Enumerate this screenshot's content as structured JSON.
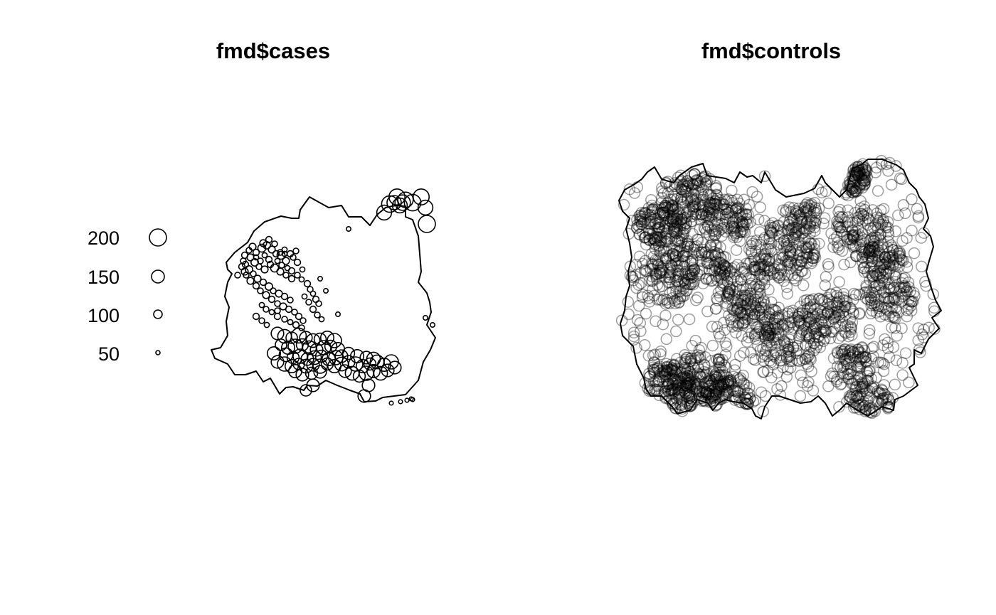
{
  "chart_data": [
    {
      "type": "scatter",
      "title": "fmd$cases",
      "legend": {
        "position": "left",
        "values": [
          200,
          150,
          100,
          50
        ]
      },
      "window": [
        [
          -10,
          110
        ],
        [
          -8,
          122
        ],
        [
          5,
          140
        ],
        [
          32,
          125
        ],
        [
          50,
          128
        ],
        [
          60,
          112
        ],
        [
          78,
          112
        ],
        [
          90,
          100
        ],
        [
          100,
          115
        ],
        [
          112,
          125
        ],
        [
          126,
          128
        ],
        [
          140,
          127
        ],
        [
          140,
          112
        ],
        [
          150,
          108
        ],
        [
          158,
          85
        ],
        [
          160,
          60
        ],
        [
          162,
          35
        ],
        [
          158,
          20
        ],
        [
          170,
          5
        ],
        [
          174,
          -8
        ],
        [
          176,
          -22
        ],
        [
          170,
          -40
        ],
        [
          182,
          -58
        ],
        [
          175,
          -75
        ],
        [
          165,
          -92
        ],
        [
          158,
          -118
        ],
        [
          140,
          -138
        ],
        [
          124,
          -140
        ],
        [
          108,
          -142
        ],
        [
          98,
          -147
        ],
        [
          82,
          -148
        ],
        [
          76,
          -137
        ],
        [
          62,
          -132
        ],
        [
          44,
          -125
        ],
        [
          28,
          -118
        ],
        [
          16,
          -126
        ],
        [
          2,
          -125
        ],
        [
          -3,
          -132
        ],
        [
          -18,
          -127
        ],
        [
          -28,
          -128
        ],
        [
          -37,
          -137
        ],
        [
          -50,
          -115
        ],
        [
          -60,
          -120
        ],
        [
          -70,
          -105
        ],
        [
          -85,
          -110
        ],
        [
          -100,
          -110
        ],
        [
          -110,
          -95
        ],
        [
          -128,
          -87
        ],
        [
          -133,
          -75
        ],
        [
          -120,
          -72
        ],
        [
          -110,
          -55
        ],
        [
          -112,
          -35
        ],
        [
          -108,
          -15
        ],
        [
          -114,
          0
        ],
        [
          -110,
          20
        ],
        [
          -104,
          32
        ],
        [
          -110,
          38
        ],
        [
          -112,
          48
        ],
        [
          -100,
          62
        ],
        [
          -82,
          76
        ],
        [
          -73,
          92
        ],
        [
          -58,
          105
        ],
        [
          -35,
          113
        ],
        [
          -20,
          110
        ]
      ],
      "points": [
        [
          -80,
          65,
          50
        ],
        [
          -75,
          70,
          60
        ],
        [
          -70,
          62,
          55
        ],
        [
          -62,
          68,
          70
        ],
        [
          -55,
          72,
          65
        ],
        [
          -48,
          66,
          60
        ],
        [
          -42,
          60,
          55
        ],
        [
          -35,
          58,
          70
        ],
        [
          -28,
          50,
          60
        ],
        [
          -18,
          55,
          50
        ],
        [
          -12,
          48,
          55
        ],
        [
          -78,
          55,
          60
        ],
        [
          -72,
          48,
          65
        ],
        [
          -66,
          42,
          50
        ],
        [
          -58,
          38,
          60
        ],
        [
          -50,
          45,
          55
        ],
        [
          -44,
          40,
          70
        ],
        [
          -36,
          35,
          60
        ],
        [
          -28,
          30,
          50
        ],
        [
          -20,
          25,
          55
        ],
        [
          -85,
          45,
          55
        ],
        [
          -80,
          38,
          65
        ],
        [
          -74,
          32,
          50
        ],
        [
          -68,
          25,
          60
        ],
        [
          -60,
          20,
          55
        ],
        [
          -52,
          14,
          65
        ],
        [
          -46,
          8,
          50
        ],
        [
          -38,
          4,
          60
        ],
        [
          -30,
          0,
          55
        ],
        [
          -22,
          -5,
          50
        ],
        [
          -84,
          30,
          50
        ],
        [
          -78,
          22,
          60
        ],
        [
          -70,
          15,
          55
        ],
        [
          -64,
          8,
          50
        ],
        [
          -56,
          2,
          60
        ],
        [
          -48,
          -4,
          55
        ],
        [
          -40,
          -10,
          50
        ],
        [
          -32,
          -14,
          60
        ],
        [
          -24,
          -18,
          55
        ],
        [
          -16,
          -22,
          50
        ],
        [
          -10,
          -28,
          55
        ],
        [
          -4,
          -34,
          50
        ],
        [
          -62,
          -12,
          45
        ],
        [
          -56,
          -18,
          50
        ],
        [
          -48,
          -22,
          45
        ],
        [
          -40,
          -28,
          55
        ],
        [
          -30,
          -32,
          50
        ],
        [
          -22,
          -36,
          45
        ],
        [
          -14,
          -40,
          55
        ],
        [
          -6,
          -44,
          50
        ],
        [
          -70,
          55,
          45
        ],
        [
          -64,
          50,
          50
        ],
        [
          -58,
          58,
          45
        ],
        [
          -52,
          52,
          55
        ],
        [
          -40,
          50,
          45
        ],
        [
          -34,
          44,
          50
        ],
        [
          -26,
          40,
          45
        ],
        [
          -20,
          36,
          55
        ],
        [
          -12,
          30,
          50
        ],
        [
          -6,
          24,
          45
        ],
        [
          2,
          18,
          55
        ],
        [
          6,
          10,
          50
        ],
        [
          10,
          4,
          45
        ],
        [
          14,
          -4,
          55
        ],
        [
          18,
          -10,
          50
        ],
        [
          -2,
          0,
          45
        ],
        [
          4,
          -8,
          50
        ],
        [
          10,
          -18,
          55
        ],
        [
          16,
          -26,
          50
        ],
        [
          22,
          -32,
          45
        ],
        [
          -86,
          58,
          55
        ],
        [
          -88,
          50,
          50
        ],
        [
          -90,
          42,
          55
        ],
        [
          -86,
          35,
          60
        ],
        [
          -36,
          62,
          50
        ],
        [
          -30,
          66,
          45
        ],
        [
          -22,
          60,
          55
        ],
        [
          -14,
          64,
          50
        ],
        [
          -60,
          75,
          60
        ],
        [
          -52,
          80,
          55
        ],
        [
          -44,
          74,
          50
        ],
        [
          -96,
          30,
          50
        ],
        [
          -70,
          -28,
          55
        ],
        [
          -62,
          -34,
          50
        ],
        [
          -55,
          -40,
          45
        ],
        [
          -40,
          -52,
          110
        ],
        [
          -30,
          -56,
          120
        ],
        [
          -20,
          -58,
          100
        ],
        [
          -10,
          -55,
          130
        ],
        [
          0,
          -58,
          110
        ],
        [
          10,
          -62,
          120
        ],
        [
          20,
          -60,
          105
        ],
        [
          30,
          -58,
          115
        ],
        [
          40,
          -62,
          125
        ],
        [
          -35,
          -68,
          100
        ],
        [
          -25,
          -72,
          115
        ],
        [
          -15,
          -70,
          125
        ],
        [
          -5,
          -68,
          105
        ],
        [
          5,
          -72,
          120
        ],
        [
          15,
          -75,
          110
        ],
        [
          25,
          -72,
          125
        ],
        [
          35,
          -70,
          105
        ],
        [
          45,
          -74,
          115
        ],
        [
          -28,
          -82,
          120
        ],
        [
          -18,
          -86,
          105
        ],
        [
          -8,
          -84,
          125
        ],
        [
          2,
          -88,
          110
        ],
        [
          12,
          -86,
          120
        ],
        [
          22,
          -84,
          105
        ],
        [
          32,
          -88,
          115
        ],
        [
          42,
          -86,
          125
        ],
        [
          50,
          -84,
          110
        ],
        [
          -45,
          -80,
          115
        ],
        [
          -40,
          -92,
          110
        ],
        [
          -30,
          -95,
          125
        ],
        [
          -20,
          -98,
          115
        ],
        [
          -10,
          -95,
          100
        ],
        [
          0,
          -98,
          120
        ],
        [
          10,
          -96,
          110
        ],
        [
          20,
          -98,
          125
        ],
        [
          30,
          -95,
          105
        ],
        [
          40,
          -98,
          115
        ],
        [
          50,
          -95,
          120
        ],
        [
          60,
          -92,
          110
        ],
        [
          70,
          -95,
          125
        ],
        [
          80,
          -98,
          115
        ],
        [
          90,
          -95,
          105
        ],
        [
          100,
          -92,
          120
        ],
        [
          110,
          -96,
          115
        ],
        [
          55,
          -105,
          110
        ],
        [
          65,
          -108,
          120
        ],
        [
          75,
          -112,
          105
        ],
        [
          85,
          -108,
          125
        ],
        [
          95,
          -105,
          115
        ],
        [
          105,
          -108,
          120
        ],
        [
          115,
          -104,
          110
        ],
        [
          -5,
          -110,
          110
        ],
        [
          8,
          -108,
          105
        ],
        [
          -15,
          -105,
          115
        ],
        [
          20,
          -106,
          110
        ],
        [
          60,
          -80,
          105
        ],
        [
          72,
          -84,
          115
        ],
        [
          85,
          -86,
          110
        ],
        [
          95,
          -88,
          120
        ],
        [
          120,
          -92,
          125
        ],
        [
          125,
          -100,
          110
        ],
        [
          88,
          -125,
          110
        ],
        [
          82,
          -140,
          110
        ],
        [
          10,
          -125,
          110
        ],
        [
          0,
          -132,
          100
        ],
        [
          128,
          140,
          140
        ],
        [
          118,
          130,
          145
        ],
        [
          110,
          118,
          130
        ],
        [
          140,
          136,
          135
        ],
        [
          150,
          132,
          145
        ],
        [
          162,
          140,
          140
        ],
        [
          168,
          125,
          130
        ],
        [
          170,
          102,
          150
        ],
        [
          124,
          132,
          125
        ],
        [
          132,
          128,
          130
        ],
        [
          136,
          132,
          135
        ],
        [
          -30,
          60,
          45
        ],
        [
          -5,
          38,
          45
        ],
        [
          20,
          25,
          40
        ],
        [
          28,
          8,
          40
        ],
        [
          45,
          -25,
          40
        ],
        [
          60,
          95,
          40
        ],
        [
          -40,
          -20,
          50
        ],
        [
          178,
          -40,
          40
        ],
        [
          168,
          -30,
          40
        ],
        [
          120,
          -150,
          35
        ],
        [
          133,
          -148,
          35
        ],
        [
          142,
          -146,
          35
        ],
        [
          150,
          -145,
          35
        ],
        [
          148,
          -144,
          35
        ]
      ]
    },
    {
      "type": "scatter",
      "title": "fmd$controls",
      "window": [
        [
          -170,
          175
        ],
        [
          -160,
          182
        ],
        [
          -150,
          165
        ],
        [
          -133,
          160
        ],
        [
          -125,
          170
        ],
        [
          -108,
          182
        ],
        [
          -92,
          187
        ],
        [
          -86,
          170
        ],
        [
          -60,
          166
        ],
        [
          -48,
          160
        ],
        [
          -40,
          175
        ],
        [
          -30,
          168
        ],
        [
          -22,
          170
        ],
        [
          -10,
          160
        ],
        [
          -5,
          175
        ],
        [
          10,
          150
        ],
        [
          25,
          140
        ],
        [
          50,
          145
        ],
        [
          65,
          152
        ],
        [
          75,
          170
        ],
        [
          80,
          160
        ],
        [
          100,
          140
        ],
        [
          110,
          150
        ],
        [
          118,
          180
        ],
        [
          130,
          185
        ],
        [
          140,
          193
        ],
        [
          160,
          193
        ],
        [
          180,
          185
        ],
        [
          190,
          178
        ],
        [
          198,
          160
        ],
        [
          208,
          150
        ],
        [
          212,
          140
        ],
        [
          220,
          130
        ],
        [
          225,
          110
        ],
        [
          218,
          95
        ],
        [
          228,
          85
        ],
        [
          232,
          70
        ],
        [
          226,
          50
        ],
        [
          222,
          35
        ],
        [
          228,
          15
        ],
        [
          235,
          -5
        ],
        [
          243,
          -20
        ],
        [
          230,
          -30
        ],
        [
          240,
          -45
        ],
        [
          225,
          -60
        ],
        [
          215,
          -80
        ],
        [
          205,
          -75
        ],
        [
          205,
          -95
        ],
        [
          198,
          -100
        ],
        [
          210,
          -125
        ],
        [
          190,
          -140
        ],
        [
          178,
          -145
        ],
        [
          176,
          -160
        ],
        [
          160,
          -155
        ],
        [
          140,
          -168
        ],
        [
          125,
          -160
        ],
        [
          110,
          -150
        ],
        [
          100,
          -160
        ],
        [
          90,
          -168
        ],
        [
          80,
          -150
        ],
        [
          70,
          -140
        ],
        [
          60,
          -148
        ],
        [
          45,
          -150
        ],
        [
          30,
          -145
        ],
        [
          15,
          -140
        ],
        [
          5,
          -140
        ],
        [
          -5,
          -155
        ],
        [
          -10,
          -172
        ],
        [
          -18,
          -168
        ],
        [
          -23,
          -158
        ],
        [
          -35,
          -150
        ],
        [
          -50,
          -148
        ],
        [
          -60,
          -145
        ],
        [
          -70,
          -150
        ],
        [
          -78,
          -160
        ],
        [
          -85,
          -150
        ],
        [
          -100,
          -145
        ],
        [
          -110,
          -160
        ],
        [
          -128,
          -165
        ],
        [
          -135,
          -155
        ],
        [
          -150,
          -140
        ],
        [
          -165,
          -140
        ],
        [
          -172,
          -130
        ],
        [
          -175,
          -115
        ],
        [
          -185,
          -95
        ],
        [
          -190,
          -70
        ],
        [
          -205,
          -55
        ],
        [
          -208,
          -38
        ],
        [
          -202,
          -20
        ],
        [
          -200,
          0
        ],
        [
          -195,
          15
        ],
        [
          -197,
          35
        ],
        [
          -192,
          55
        ],
        [
          -195,
          75
        ],
        [
          -200,
          95
        ],
        [
          -195,
          110
        ],
        [
          -205,
          120
        ],
        [
          -210,
          135
        ],
        [
          -202,
          150
        ],
        [
          -188,
          158
        ],
        [
          -178,
          165
        ]
      ],
      "points": []
    }
  ]
}
